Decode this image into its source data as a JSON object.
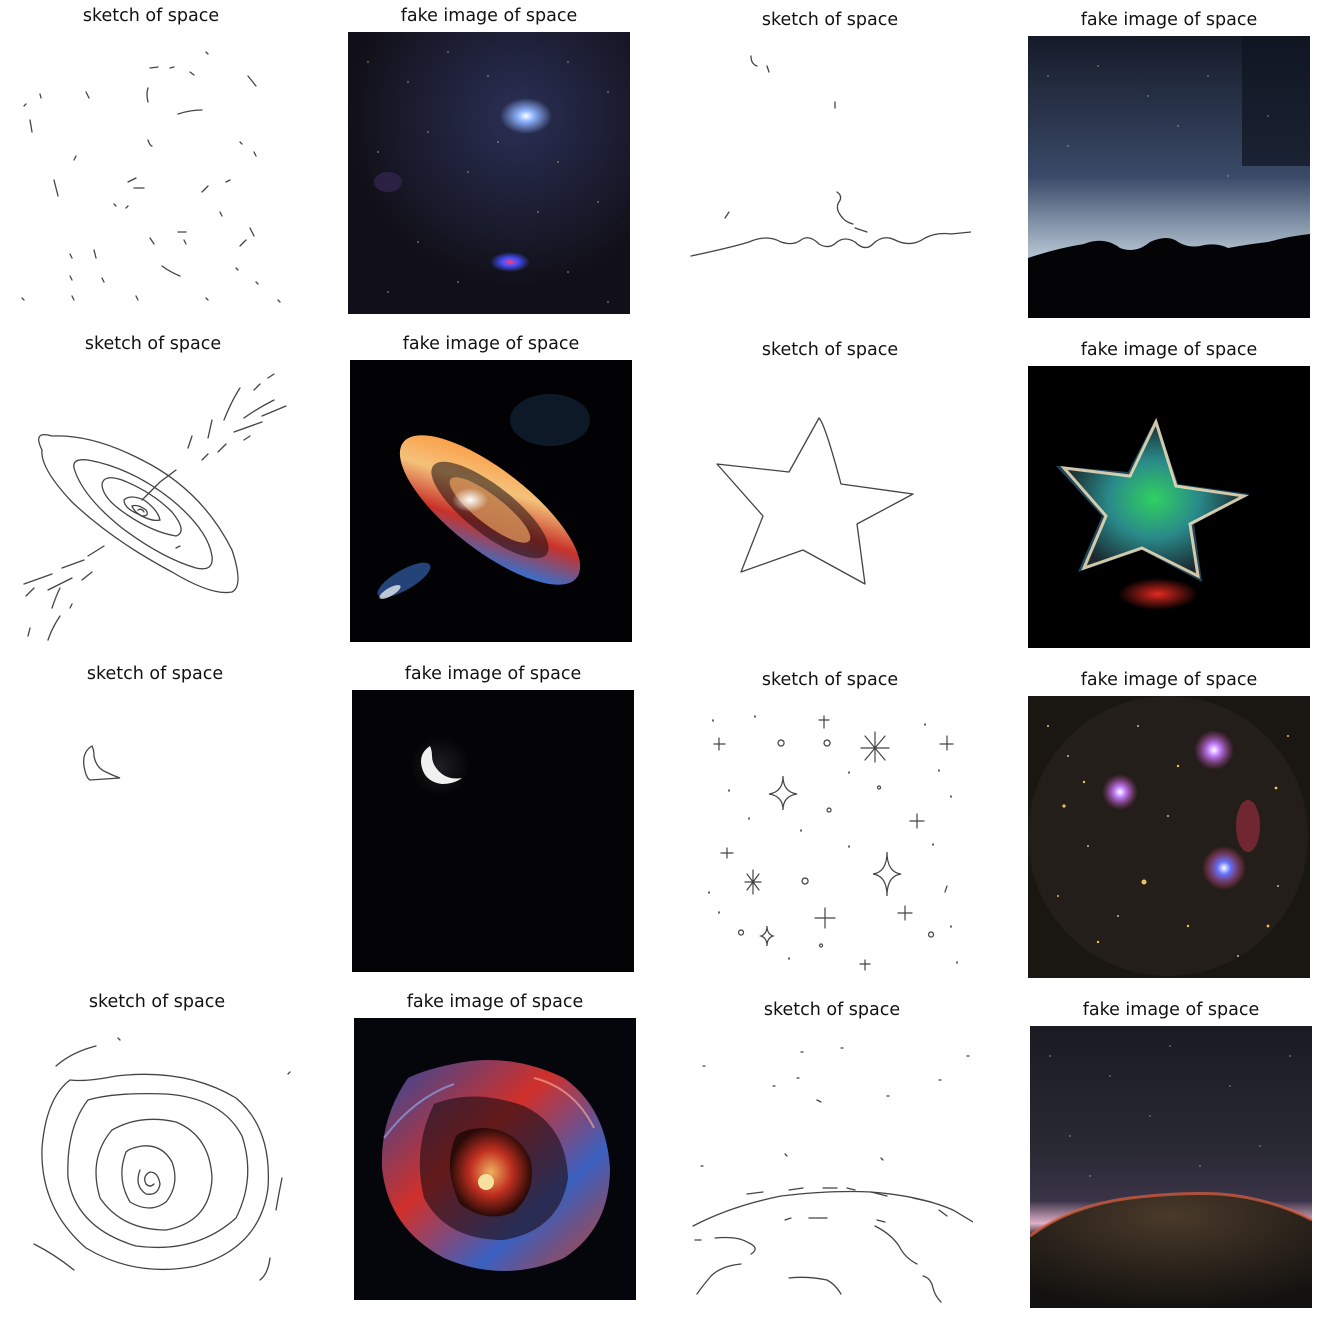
{
  "grid": [
    {
      "title": "sketch of space",
      "kind": "sketch",
      "subject": "scattered star marks"
    },
    {
      "title": "fake image of space",
      "kind": "fake",
      "subject": "starfield with nebula"
    },
    {
      "title": "sketch of space",
      "kind": "sketch",
      "subject": "horizon line"
    },
    {
      "title": "fake image of space",
      "kind": "fake",
      "subject": "night sky over mountains"
    },
    {
      "title": "sketch of space",
      "kind": "sketch",
      "subject": "spiral galaxy"
    },
    {
      "title": "fake image of space",
      "kind": "fake",
      "subject": "fiery galaxy"
    },
    {
      "title": "sketch of space",
      "kind": "sketch",
      "subject": "star outline"
    },
    {
      "title": "fake image of space",
      "kind": "fake",
      "subject": "glowing star"
    },
    {
      "title": "sketch of space",
      "kind": "sketch",
      "subject": "crescent moon"
    },
    {
      "title": "fake image of space",
      "kind": "fake",
      "subject": "crescent moon"
    },
    {
      "title": "sketch of space",
      "kind": "sketch",
      "subject": "twinkling stars"
    },
    {
      "title": "fake image of space",
      "kind": "fake",
      "subject": "starfield"
    },
    {
      "title": "sketch of space",
      "kind": "sketch",
      "subject": "spiral swirl"
    },
    {
      "title": "fake image of space",
      "kind": "fake",
      "subject": "colorful swirl"
    },
    {
      "title": "sketch of space",
      "kind": "sketch",
      "subject": "planet horizon"
    },
    {
      "title": "fake image of space",
      "kind": "fake",
      "subject": "planet surface"
    }
  ]
}
